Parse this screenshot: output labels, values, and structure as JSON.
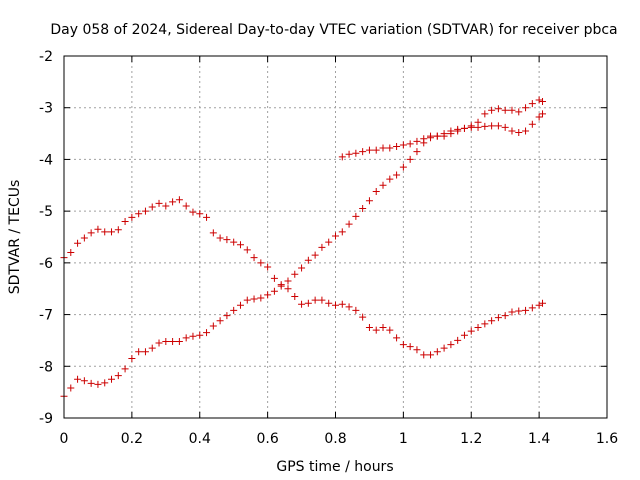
{
  "chart_data": {
    "type": "scatter",
    "title": "Day 058 of 2024, Sidereal Day-to-day VTEC variation (SDTVAR) for receiver pbca",
    "xlabel": "GPS time / hours",
    "ylabel": "SDTVAR / TECUs",
    "xlim": [
      0,
      1.6
    ],
    "ylim": [
      -9,
      -2
    ],
    "xticks": [
      "0",
      "0.2",
      "0.4",
      "0.6",
      "0.8",
      "1",
      "1.2",
      "1.4",
      "1.6"
    ],
    "yticks": [
      "-9",
      "-8",
      "-7",
      "-6",
      "-5",
      "-4",
      "-3",
      "-2"
    ],
    "grid": true,
    "marker": "+",
    "point_color": "#cc0000",
    "series": [
      {
        "points": [
          [
            0.0,
            -5.9
          ],
          [
            0.02,
            -5.8
          ],
          [
            0.04,
            -5.62
          ],
          [
            0.06,
            -5.52
          ],
          [
            0.08,
            -5.42
          ],
          [
            0.1,
            -5.35
          ],
          [
            0.12,
            -5.4
          ],
          [
            0.14,
            -5.4
          ],
          [
            0.16,
            -5.36
          ],
          [
            0.18,
            -5.2
          ],
          [
            0.2,
            -5.12
          ],
          [
            0.22,
            -5.05
          ],
          [
            0.24,
            -5.0
          ],
          [
            0.26,
            -4.92
          ],
          [
            0.28,
            -4.85
          ],
          [
            0.3,
            -4.9
          ],
          [
            0.32,
            -4.82
          ],
          [
            0.34,
            -4.78
          ],
          [
            0.36,
            -4.9
          ],
          [
            0.38,
            -5.02
          ],
          [
            0.4,
            -5.05
          ],
          [
            0.42,
            -5.12
          ],
          [
            0.44,
            -5.42
          ],
          [
            0.46,
            -5.52
          ],
          [
            0.48,
            -5.55
          ],
          [
            0.5,
            -5.6
          ],
          [
            0.52,
            -5.65
          ],
          [
            0.54,
            -5.75
          ],
          [
            0.56,
            -5.9
          ],
          [
            0.58,
            -6.0
          ],
          [
            0.6,
            -6.08
          ],
          [
            0.62,
            -6.3
          ],
          [
            0.64,
            -6.42
          ],
          [
            0.66,
            -6.5
          ],
          [
            0.68,
            -6.65
          ],
          [
            0.7,
            -6.8
          ],
          [
            0.72,
            -6.78
          ],
          [
            0.74,
            -6.72
          ],
          [
            0.76,
            -6.72
          ],
          [
            0.78,
            -6.78
          ],
          [
            0.8,
            -6.82
          ],
          [
            0.82,
            -6.8
          ],
          [
            0.84,
            -6.85
          ],
          [
            0.86,
            -6.92
          ],
          [
            0.88,
            -7.05
          ],
          [
            0.9,
            -7.25
          ],
          [
            0.92,
            -7.3
          ],
          [
            0.94,
            -7.25
          ],
          [
            0.96,
            -7.3
          ],
          [
            0.98,
            -7.45
          ],
          [
            1.0,
            -7.58
          ],
          [
            1.02,
            -7.62
          ],
          [
            1.04,
            -7.68
          ],
          [
            1.06,
            -7.78
          ],
          [
            1.08,
            -7.78
          ],
          [
            1.1,
            -7.72
          ],
          [
            1.12,
            -7.65
          ],
          [
            1.14,
            -7.58
          ],
          [
            1.16,
            -7.5
          ],
          [
            1.18,
            -7.4
          ],
          [
            1.2,
            -7.32
          ],
          [
            1.22,
            -7.25
          ],
          [
            1.24,
            -7.18
          ],
          [
            1.26,
            -7.12
          ],
          [
            1.28,
            -7.06
          ],
          [
            1.3,
            -7.02
          ],
          [
            1.32,
            -6.95
          ],
          [
            1.34,
            -6.93
          ],
          [
            1.36,
            -6.92
          ],
          [
            1.38,
            -6.87
          ],
          [
            1.4,
            -6.82
          ],
          [
            1.41,
            -6.78
          ]
        ]
      },
      {
        "points": [
          [
            0.0,
            -8.58
          ],
          [
            0.02,
            -8.42
          ],
          [
            0.04,
            -8.25
          ],
          [
            0.06,
            -8.28
          ],
          [
            0.08,
            -8.33
          ],
          [
            0.1,
            -8.35
          ],
          [
            0.12,
            -8.32
          ],
          [
            0.14,
            -8.25
          ],
          [
            0.16,
            -8.18
          ],
          [
            0.18,
            -8.05
          ],
          [
            0.2,
            -7.85
          ],
          [
            0.22,
            -7.72
          ],
          [
            0.24,
            -7.72
          ],
          [
            0.26,
            -7.65
          ],
          [
            0.28,
            -7.55
          ],
          [
            0.3,
            -7.52
          ],
          [
            0.32,
            -7.52
          ],
          [
            0.34,
            -7.52
          ],
          [
            0.36,
            -7.45
          ],
          [
            0.38,
            -7.42
          ],
          [
            0.4,
            -7.4
          ],
          [
            0.42,
            -7.35
          ],
          [
            0.44,
            -7.22
          ],
          [
            0.46,
            -7.12
          ],
          [
            0.48,
            -7.02
          ],
          [
            0.5,
            -6.92
          ],
          [
            0.52,
            -6.82
          ],
          [
            0.54,
            -6.72
          ],
          [
            0.56,
            -6.7
          ],
          [
            0.58,
            -6.68
          ],
          [
            0.6,
            -6.62
          ],
          [
            0.62,
            -6.55
          ],
          [
            0.64,
            -6.45
          ],
          [
            0.66,
            -6.35
          ],
          [
            0.68,
            -6.22
          ],
          [
            0.7,
            -6.1
          ],
          [
            0.72,
            -5.95
          ],
          [
            0.74,
            -5.85
          ],
          [
            0.76,
            -5.7
          ],
          [
            0.78,
            -5.6
          ],
          [
            0.8,
            -5.48
          ],
          [
            0.82,
            -5.4
          ],
          [
            0.84,
            -5.25
          ],
          [
            0.86,
            -5.1
          ],
          [
            0.88,
            -4.95
          ],
          [
            0.9,
            -4.8
          ],
          [
            0.92,
            -4.62
          ],
          [
            0.94,
            -4.5
          ],
          [
            0.96,
            -4.38
          ],
          [
            0.98,
            -4.3
          ],
          [
            1.0,
            -4.15
          ],
          [
            1.02,
            -4.0
          ],
          [
            1.04,
            -3.85
          ],
          [
            1.06,
            -3.68
          ],
          [
            1.08,
            -3.55
          ],
          [
            1.1,
            -3.55
          ],
          [
            1.12,
            -3.5
          ],
          [
            1.14,
            -3.45
          ],
          [
            1.16,
            -3.42
          ],
          [
            1.18,
            -3.4
          ],
          [
            1.2,
            -3.38
          ],
          [
            1.22,
            -3.38
          ],
          [
            1.24,
            -3.36
          ],
          [
            1.26,
            -3.35
          ],
          [
            1.28,
            -3.35
          ],
          [
            1.3,
            -3.38
          ],
          [
            1.32,
            -3.45
          ],
          [
            1.34,
            -3.48
          ],
          [
            1.36,
            -3.45
          ],
          [
            1.38,
            -3.32
          ],
          [
            1.4,
            -3.18
          ],
          [
            1.41,
            -3.12
          ]
        ]
      },
      {
        "points": [
          [
            0.82,
            -3.95
          ],
          [
            0.84,
            -3.9
          ],
          [
            0.86,
            -3.88
          ],
          [
            0.88,
            -3.85
          ],
          [
            0.9,
            -3.82
          ],
          [
            0.92,
            -3.82
          ],
          [
            0.94,
            -3.78
          ],
          [
            0.96,
            -3.78
          ],
          [
            0.98,
            -3.75
          ],
          [
            1.0,
            -3.72
          ],
          [
            1.02,
            -3.7
          ],
          [
            1.04,
            -3.65
          ],
          [
            1.06,
            -3.6
          ],
          [
            1.08,
            -3.58
          ],
          [
            1.1,
            -3.55
          ],
          [
            1.12,
            -3.55
          ],
          [
            1.14,
            -3.5
          ],
          [
            1.16,
            -3.45
          ],
          [
            1.18,
            -3.4
          ],
          [
            1.2,
            -3.35
          ],
          [
            1.22,
            -3.28
          ],
          [
            1.24,
            -3.12
          ],
          [
            1.26,
            -3.05
          ],
          [
            1.28,
            -3.02
          ],
          [
            1.3,
            -3.05
          ],
          [
            1.32,
            -3.05
          ],
          [
            1.34,
            -3.08
          ],
          [
            1.36,
            -3.0
          ],
          [
            1.38,
            -2.92
          ],
          [
            1.4,
            -2.85
          ],
          [
            1.41,
            -2.88
          ]
        ]
      }
    ]
  }
}
